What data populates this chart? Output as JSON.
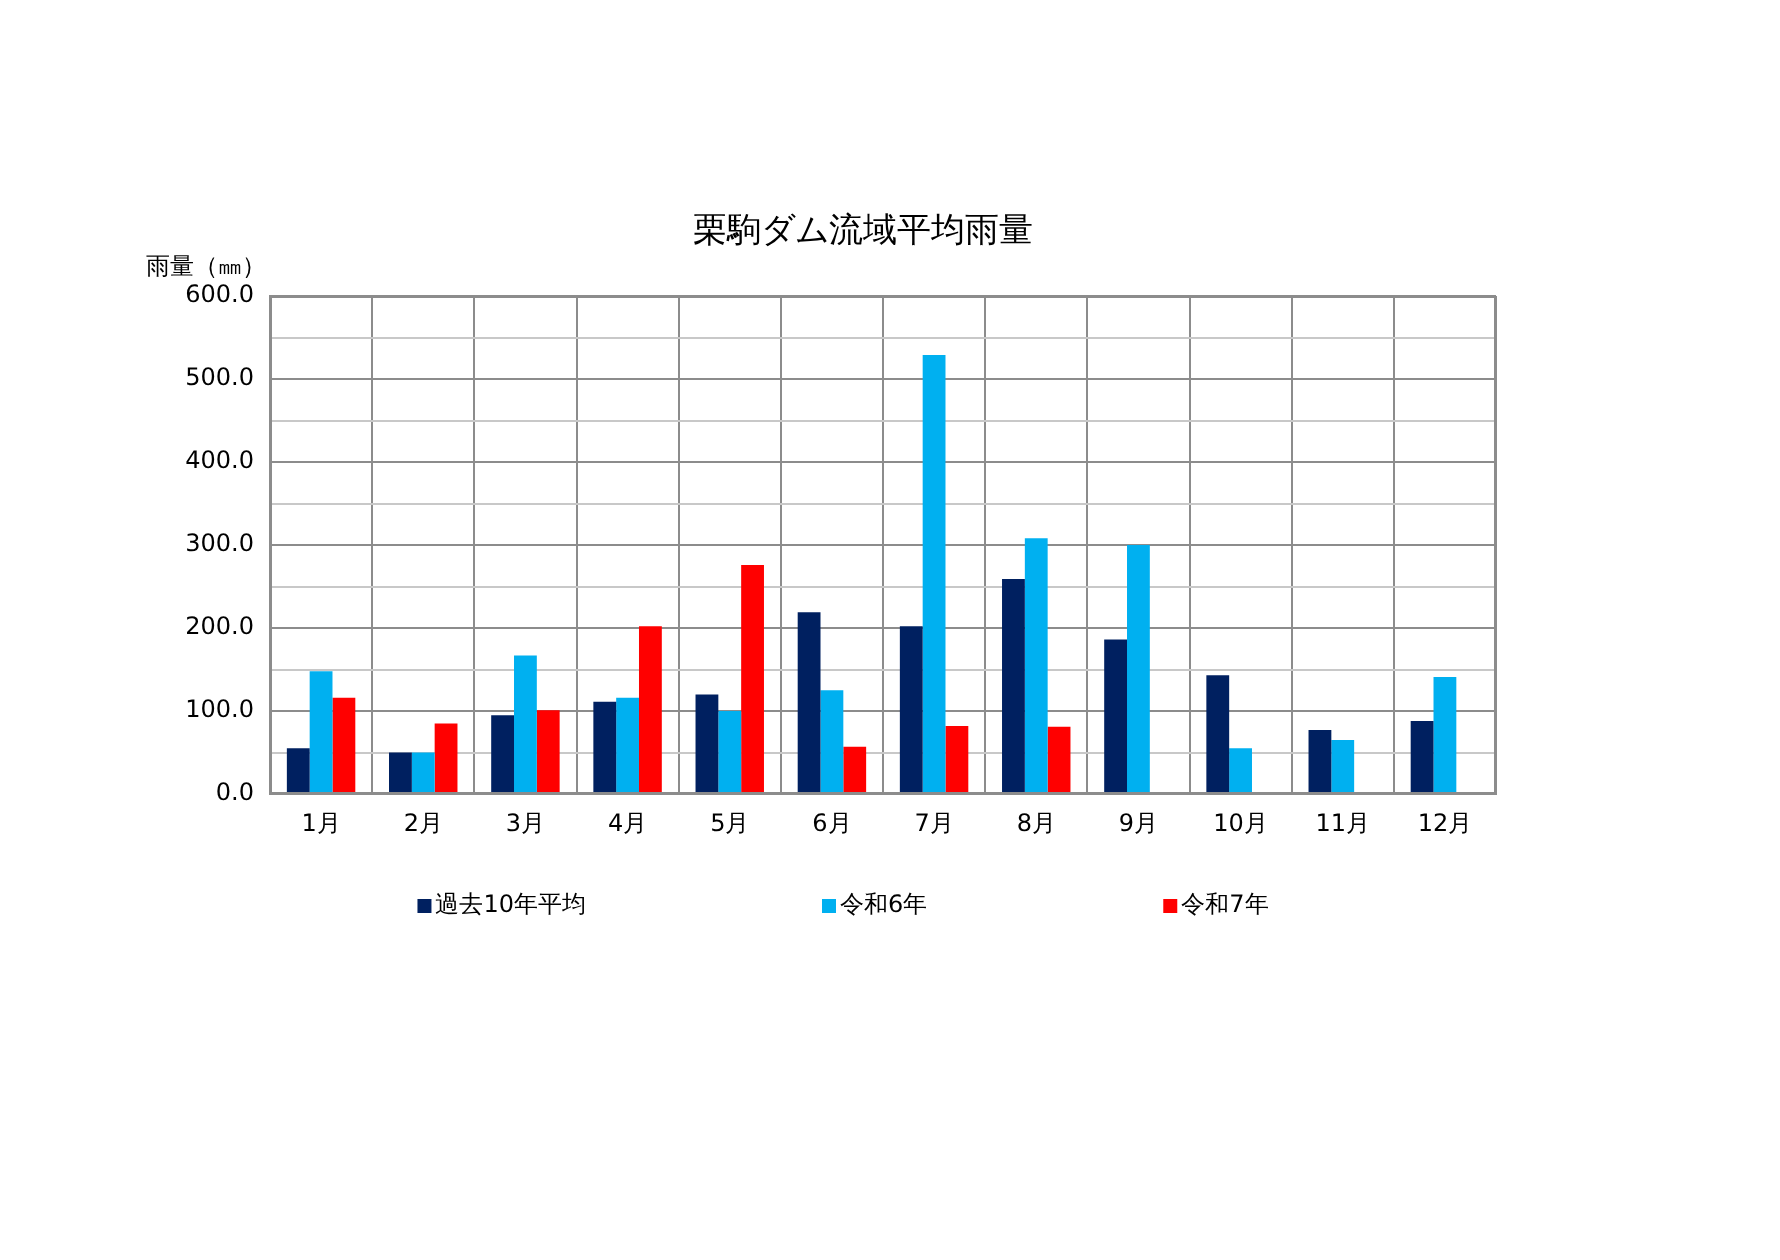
{
  "chart_data": {
    "type": "bar",
    "title": "栗駒ダム流域平均雨量",
    "ylabel": "雨量（㎜）",
    "categories": [
      "1月",
      "2月",
      "3月",
      "4月",
      "5月",
      "6月",
      "7月",
      "8月",
      "9月",
      "10月",
      "11月",
      "12月"
    ],
    "series": [
      {
        "name": "過去10年平均",
        "color": "#002060",
        "values": [
          55,
          50,
          95,
          111,
          120,
          219,
          202,
          259,
          186,
          143,
          77,
          88
        ]
      },
      {
        "name": "令和6年",
        "color": "#00b0f0",
        "values": [
          148,
          50,
          167,
          116,
          100,
          125,
          529,
          308,
          300,
          55,
          65,
          141
        ]
      },
      {
        "name": "令和7年",
        "color": "#ff0000",
        "values": [
          116,
          85,
          101,
          202,
          276,
          57,
          82,
          81,
          null,
          null,
          null,
          null
        ]
      }
    ],
    "ylim": [
      0,
      600
    ],
    "yticks": [
      {
        "value": 0,
        "label": "0.0"
      },
      {
        "value": 50,
        "label": null
      },
      {
        "value": 100,
        "label": "100.0"
      },
      {
        "value": 150,
        "label": null
      },
      {
        "value": 200,
        "label": "200.0"
      },
      {
        "value": 250,
        "label": null
      },
      {
        "value": 300,
        "label": "300.0"
      },
      {
        "value": 350,
        "label": null
      },
      {
        "value": 400,
        "label": "400.0"
      },
      {
        "value": 450,
        "label": null
      },
      {
        "value": 500,
        "label": "500.0"
      },
      {
        "value": 550,
        "label": null
      },
      {
        "value": 600,
        "label": "600.0"
      }
    ],
    "grid": true,
    "legend": "bottom"
  }
}
